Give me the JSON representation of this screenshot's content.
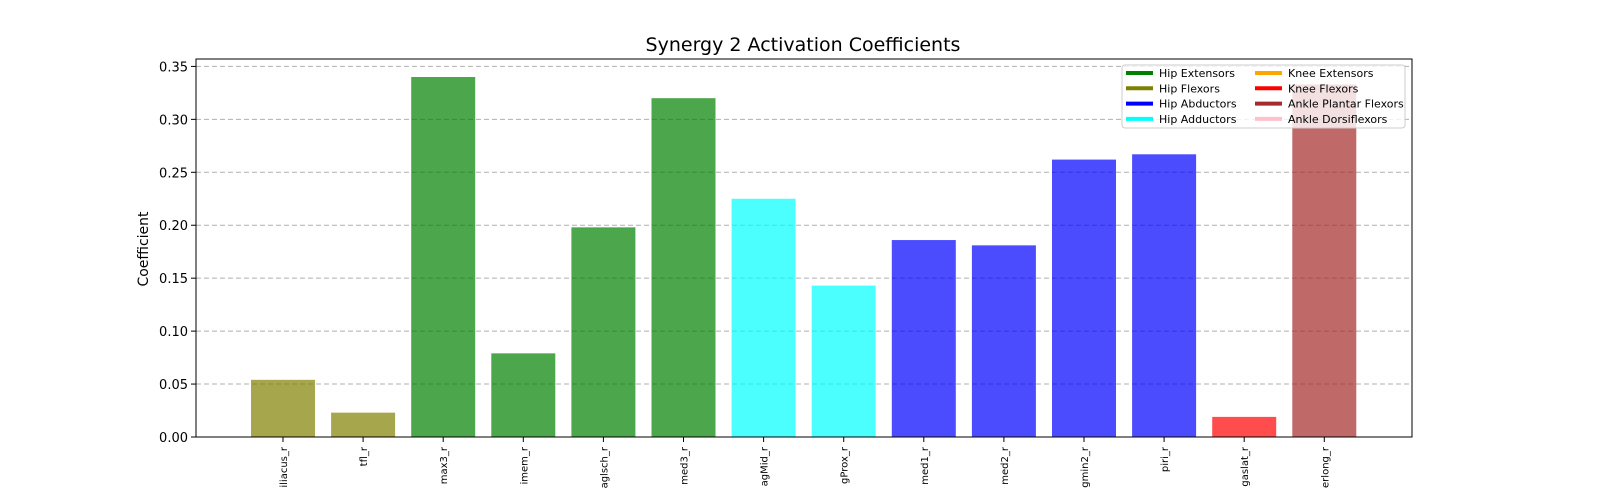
{
  "chart_data": {
    "type": "bar",
    "title": "Synergy 2 Activation Coefficients",
    "xlabel": "",
    "ylabel": "Coefficient",
    "ylim": [
      0,
      0.357
    ],
    "yticks": [
      "0.00",
      "0.05",
      "0.10",
      "0.15",
      "0.20",
      "0.25",
      "0.30",
      "0.35"
    ],
    "grid": "y dashed",
    "legend_position": "top-right",
    "categories": [
      "iliacus_r",
      "tfl_r",
      "max3_r",
      "imem_r",
      "aglsch_r",
      "med3_r",
      "agMid_r",
      "gProx_r",
      "med1_r",
      "med2_r",
      "gmin2_r",
      "piri_r",
      "gaslat_r",
      "erlong_r"
    ],
    "values": [
      0.054,
      0.023,
      0.34,
      0.079,
      0.198,
      0.32,
      0.225,
      0.143,
      0.186,
      0.181,
      0.262,
      0.267,
      0.019,
      0.333
    ],
    "groups": [
      "Hip Flexors",
      "Hip Flexors",
      "Hip Extensors",
      "Hip Extensors",
      "Hip Extensors",
      "Hip Extensors",
      "Hip Adductors",
      "Hip Adductors",
      "Hip Abductors",
      "Hip Abductors",
      "Hip Abductors",
      "Hip Abductors",
      "Knee Flexors",
      "Ankle Plantar Flexors"
    ],
    "legend": [
      {
        "name": "Hip Extensors",
        "color": "#008000"
      },
      {
        "name": "Hip Flexors",
        "color": "#808000"
      },
      {
        "name": "Hip Abductors",
        "color": "#0000ff"
      },
      {
        "name": "Hip Adductors",
        "color": "#00ffff"
      },
      {
        "name": "Knee Extensors",
        "color": "#ffa500"
      },
      {
        "name": "Knee Flexors",
        "color": "#ff0000"
      },
      {
        "name": "Ankle Plantar Flexors",
        "color": "#a52a2a"
      },
      {
        "name": "Ankle Dorsiflexors",
        "color": "#ffc0cb"
      }
    ],
    "bar_opacity": 0.7
  }
}
